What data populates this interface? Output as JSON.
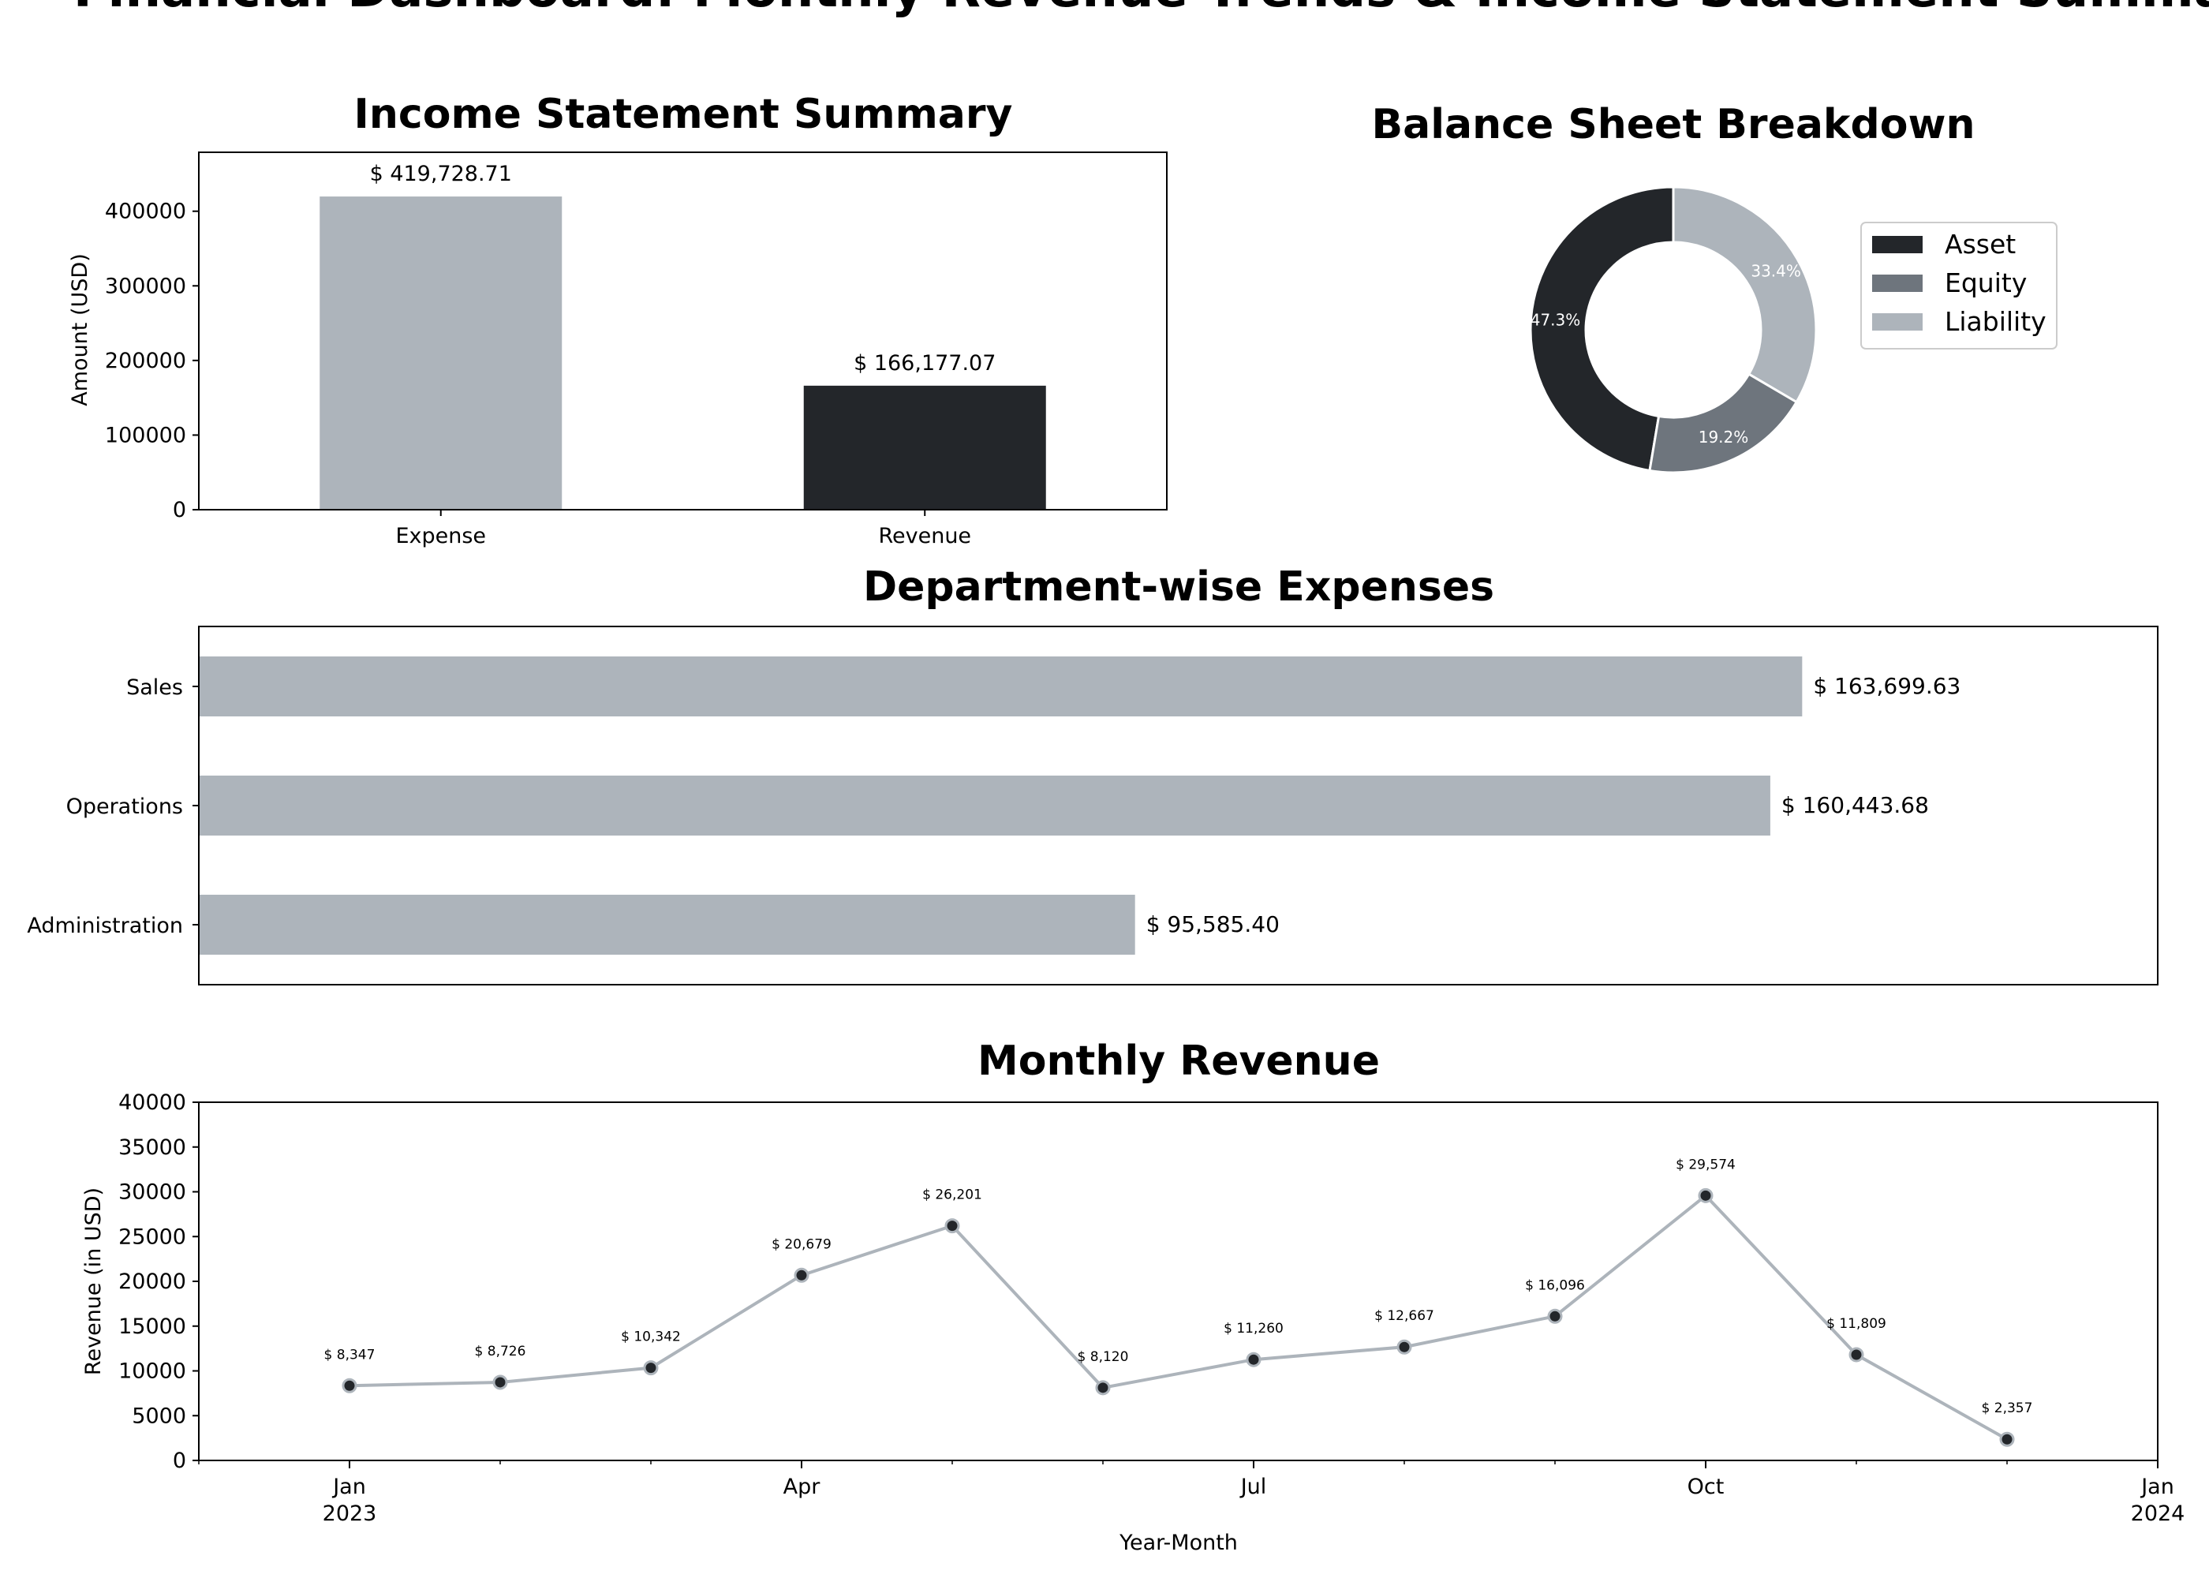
{
  "dashboard": {
    "title": "Financial Dashboard: Monthly Revenue Trends & Income Statement Summary"
  },
  "colors": {
    "dark": "#23262a",
    "mid": "#6e757d",
    "light": "#adb4bb",
    "line": "#adb4bb",
    "text": "#000000",
    "pie_label": "#ffffff"
  },
  "chart_data": [
    {
      "id": "income",
      "type": "bar",
      "title": "Income Statement Summary",
      "xlabel": "",
      "ylabel": "Amount (USD)",
      "categories": [
        "Expense",
        "Revenue"
      ],
      "values": [
        419728.71,
        166177.07
      ],
      "labels": [
        "$ 419,728.71",
        "$ 166,177.07"
      ],
      "bar_colors": [
        "#adb4bb",
        "#23262a"
      ],
      "ylim": [
        0,
        479000
      ],
      "yticks": [
        0,
        100000,
        200000,
        300000,
        400000
      ],
      "ytick_labels": [
        "0",
        "100000",
        "200000",
        "300000",
        "400000"
      ]
    },
    {
      "id": "balance",
      "type": "pie",
      "title": "Balance Sheet Breakdown",
      "donut": true,
      "categories": [
        "Asset",
        "Equity",
        "Liability"
      ],
      "values": [
        47.3,
        19.2,
        33.4
      ],
      "labels": [
        "47.3%",
        "19.2%",
        "33.4%"
      ],
      "colors": [
        "#23262a",
        "#6e757d",
        "#adb4bb"
      ],
      "legend": "right",
      "legend_labels": [
        "Asset",
        "Equity",
        "Liability"
      ]
    },
    {
      "id": "dept",
      "type": "bar",
      "orientation": "horizontal",
      "title": "Department-wise Expenses",
      "categories": [
        "Sales",
        "Operations",
        "Administration"
      ],
      "values": [
        163699.63,
        160443.68,
        95585.4
      ],
      "labels": [
        "$ 163,699.63",
        "$ 160,443.68",
        "$ 95,585.40"
      ],
      "xlim": [
        0,
        200000
      ],
      "color": "#adb4bb"
    },
    {
      "id": "monthly",
      "type": "line",
      "title": "Monthly Revenue",
      "xlabel": "Year-Month",
      "ylabel": "Revenue (in USD)",
      "x": [
        "2023-01",
        "2023-02",
        "2023-03",
        "2023-04",
        "2023-05",
        "2023-06",
        "2023-07",
        "2023-08",
        "2023-09",
        "2023-10",
        "2023-11",
        "2023-12"
      ],
      "values": [
        8347,
        8726,
        10342,
        20679,
        26201,
        8120,
        11260,
        12667,
        16096,
        29574,
        11809,
        2357
      ],
      "labels": [
        "$ 8,347",
        "$ 8,726",
        "$ 10,342",
        "$ 20,679",
        "$ 26,201",
        "$ 8,120",
        "$ 11,260",
        "$ 12,667",
        "$ 16,096",
        "$ 29,574",
        "$ 11,809",
        "$ 2,357"
      ],
      "xlim": [
        "2022-12",
        "2024-01"
      ],
      "ylim": [
        0,
        40000
      ],
      "yticks": [
        0,
        5000,
        10000,
        15000,
        20000,
        25000,
        30000,
        35000,
        40000
      ],
      "ytick_labels": [
        "0",
        "5000",
        "10000",
        "15000",
        "20000",
        "25000",
        "30000",
        "35000",
        "40000"
      ],
      "xtick_labels": [
        "Jan\n2023",
        "Apr",
        "Jul",
        "Oct",
        "Jan\n2024"
      ],
      "xtick_months": [
        "2023-01",
        "2023-04",
        "2023-07",
        "2023-10",
        "2024-01"
      ]
    }
  ]
}
